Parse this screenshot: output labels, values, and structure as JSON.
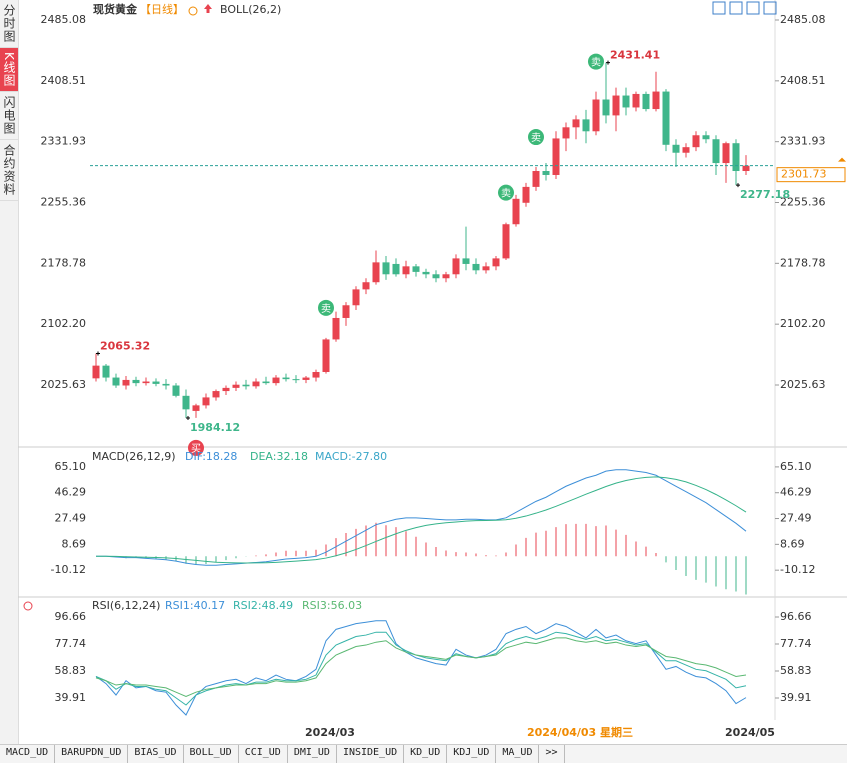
{
  "sidebar": [
    "分时图",
    "K线图",
    "闪电图",
    "合约资料"
  ],
  "chart_data": [
    {
      "type": "candlestick",
      "title": "现货黄金",
      "period": "【日线】",
      "indicator": "BOLL(26,2)",
      "up_color": "#e8434f",
      "down_color": "#3fb68b",
      "open": [
        2034,
        2050,
        2035,
        2025,
        2032,
        2028,
        2030,
        2027,
        2025,
        2012,
        1993,
        2000,
        2010,
        2018,
        2022,
        2026,
        2024,
        2030,
        2028,
        2035,
        2033,
        2032,
        2035,
        2042,
        2083,
        2110,
        2126,
        2146,
        2155,
        2180,
        2178,
        2165,
        2175,
        2168,
        2165,
        2160,
        2165,
        2185,
        2178,
        2170,
        2175,
        2185,
        2228,
        2255,
        2275,
        2295,
        2290,
        2336,
        2350,
        2360,
        2345,
        2385,
        2365,
        2390,
        2375,
        2392,
        2373,
        2395,
        2328,
        2318,
        2325,
        2340,
        2335,
        2305,
        2330,
        2295
      ],
      "high": [
        2065.32,
        2052,
        2040,
        2037,
        2036,
        2035,
        2034,
        2033,
        2028,
        2020,
        2002,
        2015,
        2020,
        2025,
        2030,
        2032,
        2034,
        2036,
        2038,
        2040,
        2038,
        2037,
        2045,
        2085,
        2118,
        2130,
        2150,
        2160,
        2195,
        2188,
        2185,
        2182,
        2178,
        2172,
        2170,
        2168,
        2190,
        2225,
        2185,
        2180,
        2188,
        2230,
        2265,
        2280,
        2300,
        2305,
        2345,
        2356,
        2365,
        2372,
        2395,
        2431.41,
        2400,
        2400,
        2395,
        2395,
        2420,
        2398,
        2335,
        2330,
        2345,
        2345,
        2340,
        2332,
        2335,
        2315
      ],
      "low": [
        2030,
        2030,
        2022,
        2020,
        2024,
        2025,
        2024,
        2020,
        2010,
        1984.12,
        1984.2,
        1996,
        2006,
        2013,
        2018,
        2020,
        2021,
        2026,
        2025,
        2030,
        2028,
        2028,
        2030,
        2040,
        2080,
        2100,
        2120,
        2140,
        2152,
        2158,
        2162,
        2160,
        2162,
        2160,
        2155,
        2155,
        2160,
        2170,
        2165,
        2166,
        2170,
        2183,
        2225,
        2250,
        2270,
        2283,
        2285,
        2320,
        2335,
        2330,
        2340,
        2355,
        2345,
        2365,
        2370,
        2370,
        2370,
        2320,
        2300,
        2312,
        2320,
        2330,
        2290,
        2280,
        2277.18,
        2290
      ],
      "close": [
        2050,
        2035,
        2025,
        2032,
        2028,
        2030,
        2027,
        2025,
        2012,
        1995,
        2000,
        2010,
        2018,
        2022,
        2026,
        2024,
        2030,
        2028,
        2035,
        2033,
        2032,
        2035,
        2042,
        2083,
        2110,
        2126,
        2146,
        2155,
        2180,
        2165,
        2165,
        2175,
        2168,
        2165,
        2160,
        2165,
        2185,
        2178,
        2170,
        2175,
        2185,
        2228,
        2260,
        2275,
        2295,
        2290,
        2336,
        2350,
        2360,
        2345,
        2385,
        2365,
        2390,
        2375,
        2392,
        2373,
        2395,
        2328,
        2318,
        2325,
        2340,
        2335,
        2305,
        2330,
        2295,
        2301.73
      ],
      "ylim": [
        1950.1,
        2500.19
      ],
      "yticks": [
        2485.08,
        2408.51,
        2331.93,
        2255.36,
        2178.78,
        {
          "value": 2102.2,
          "label": "2102.20"
        },
        2025.63
      ],
      "annotations": [
        2065.32,
        1984.12,
        2431.41,
        2277.18
      ],
      "current_price": 2301.73,
      "signals": [
        "买",
        "卖",
        "卖",
        "卖",
        "卖"
      ]
    },
    {
      "type": "macd",
      "title": "MACD(26,12,9)",
      "ylim": [
        -29.65,
        77.4
      ],
      "yticks": [
        {
          "value": 65.1,
          "label": "65.10"
        },
        46.29,
        27.49,
        8.69,
        -10.12
      ],
      "series": [
        {
          "name": "DIF:18.28",
          "color": "#3d8fd8",
          "values": [
            0,
            0,
            -0.5,
            -1,
            -1,
            -1.5,
            -2,
            -2.5,
            -3.5,
            -5,
            -6,
            -6.5,
            -6.5,
            -6,
            -5.5,
            -5,
            -4.5,
            -4,
            -3,
            -2,
            -1.5,
            -1,
            0,
            3,
            7,
            11,
            15,
            19,
            23,
            25,
            27,
            28,
            28,
            27.5,
            27,
            26.5,
            26.5,
            27,
            27,
            26.5,
            26.5,
            28,
            32,
            36,
            40,
            43,
            47,
            51,
            54,
            57,
            59,
            62,
            63,
            63,
            62,
            61,
            59,
            55,
            51,
            47,
            43,
            39,
            34,
            29,
            24,
            18.28
          ]
        },
        {
          "name": "DEA:32.18",
          "color": "#35b38a",
          "values": [
            0,
            0,
            -0.1,
            -0.3,
            -0.5,
            -0.7,
            -0.9,
            -1.2,
            -1.6,
            -2.3,
            -3,
            -3.7,
            -4.3,
            -4.6,
            -4.8,
            -4.9,
            -4.8,
            -4.7,
            -4.4,
            -4,
            -3.5,
            -3,
            -2.4,
            -1.3,
            0.4,
            2.5,
            5,
            7.8,
            10.8,
            13.7,
            16.4,
            18.9,
            20.9,
            22.5,
            23.6,
            24.4,
            25,
            25.6,
            26,
            26.1,
            26.2,
            26.6,
            27.7,
            29.3,
            31.4,
            33.7,
            36.4,
            39.3,
            42.2,
            45.2,
            48,
            50.8,
            53.3,
            55.2,
            56.6,
            57.5,
            57.8,
            57.2,
            56,
            54.2,
            51.6,
            48.6,
            45,
            41,
            36.8,
            32.18
          ]
        },
        {
          "name": "MACD:-27.80",
          "color": "#3aa6c8",
          "up_color": "#e8434f",
          "down_color": "#3fb68b",
          "values": [
            0,
            0,
            -0.8,
            -1.4,
            -1,
            -1.6,
            -2.2,
            -2.6,
            -3.8,
            -5.4,
            -6,
            -5.6,
            -4.4,
            -2.8,
            -1.4,
            -0.2,
            0.6,
            1.4,
            2.8,
            4,
            4,
            4,
            4.8,
            8.6,
            13.2,
            17,
            20,
            22.4,
            24.4,
            22.6,
            21.2,
            18.2,
            14.2,
            10,
            6.8,
            4.2,
            3,
            2.8,
            2,
            0.8,
            0.6,
            2.8,
            8.6,
            13.4,
            17.2,
            18.6,
            21.2,
            23.4,
            23.6,
            23.6,
            22,
            22.4,
            19.4,
            15.6,
            10.8,
            7,
            2.4,
            -4.4,
            -10,
            -14.4,
            -17.2,
            -19.2,
            -22,
            -24,
            -25.6,
            -27.8
          ]
        }
      ]
    },
    {
      "type": "rsi",
      "title": "RSI(6,12,24)",
      "ylim": [
        25.9,
        109.96
      ],
      "yticks": [
        96.66,
        77.74,
        58.83,
        39.91
      ],
      "series": [
        {
          "name": "RSI1:40.17",
          "color": "#3d8fd8",
          "values": [
            55,
            50,
            42,
            52,
            47,
            48,
            45,
            44,
            35,
            28,
            42,
            48,
            50,
            52,
            53,
            50,
            54,
            52,
            56,
            53,
            52,
            55,
            60,
            80,
            88,
            90,
            92,
            93,
            94,
            94,
            78,
            72,
            68,
            66,
            64,
            63,
            74,
            70,
            68,
            70,
            74,
            85,
            88,
            90,
            85,
            88,
            92,
            90,
            86,
            82,
            88,
            82,
            84,
            80,
            78,
            80,
            70,
            60,
            62,
            58,
            55,
            54,
            50,
            45,
            36,
            40.17
          ]
        },
        {
          "name": "RSI2:48.49",
          "color": "#35b3a8",
          "values": [
            55,
            52,
            46,
            50,
            48,
            48,
            46,
            45,
            40,
            35,
            42,
            45,
            47,
            49,
            50,
            49,
            51,
            51,
            53,
            52,
            52,
            53,
            56,
            70,
            77,
            80,
            83,
            84,
            86,
            86,
            77,
            73,
            70,
            68,
            67,
            66,
            71,
            69,
            68,
            69,
            71,
            78,
            81,
            83,
            81,
            83,
            86,
            85,
            83,
            81,
            83,
            80,
            81,
            79,
            77,
            78,
            72,
            66,
            66,
            63,
            60,
            59,
            56,
            53,
            47,
            48.49
          ]
        },
        {
          "name": "RSI3:56.03",
          "color": "#5ab872",
          "values": [
            54,
            52,
            49,
            50,
            49,
            49,
            48,
            47,
            44,
            41,
            44,
            46,
            47,
            48,
            49,
            49,
            50,
            50,
            52,
            51,
            51,
            52,
            54,
            64,
            70,
            73,
            76,
            77,
            79,
            80,
            75,
            72,
            70,
            69,
            68,
            67,
            70,
            69,
            68,
            69,
            70,
            75,
            77,
            79,
            78,
            80,
            82,
            82,
            80,
            79,
            80,
            78,
            79,
            77,
            76,
            77,
            73,
            69,
            68,
            66,
            64,
            63,
            61,
            58,
            55,
            56.03
          ]
        }
      ]
    }
  ],
  "x_axis_labels": [
    "2024/03",
    "2024/04/03 星期三",
    "2024/05"
  ],
  "tabs": [
    "MACD_UD",
    "BARUPDN_UD",
    "BIAS_UD",
    "BOLL_UD",
    "CCI_UD",
    "DMI_UD",
    "INSIDE_UD",
    "KD_UD",
    "KDJ_UD",
    "MA_UD",
    ">>"
  ]
}
